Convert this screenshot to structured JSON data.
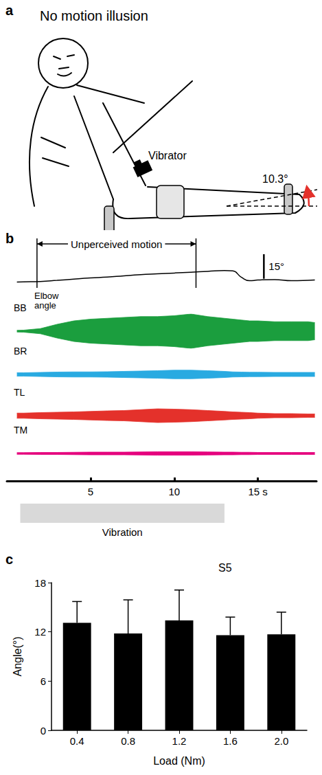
{
  "panel_a": {
    "letter": "a",
    "title": "No motion illusion",
    "vibrator_label": "Vibrator",
    "angle_label": "10.3°"
  },
  "chart_data": [
    {
      "type": "line",
      "letter": "b",
      "x": [
        0.6,
        1,
        2,
        3,
        4,
        5,
        6,
        7,
        8,
        9,
        10,
        11,
        12,
        13,
        13.5,
        14,
        14.5,
        15,
        16,
        17,
        18,
        18.4
      ],
      "xlim": [
        0,
        18.5
      ],
      "xticks": [
        5,
        10,
        {
          "value": 15,
          "label": "15 s"
        }
      ],
      "tick_labels": "x",
      "elbow": {
        "label": "Elbow angle",
        "color": "#000000",
        "values": [
          0,
          0.1,
          0.3,
          1,
          1.8,
          2.5,
          3,
          3.8,
          4.5,
          5,
          5.5,
          6,
          6.5,
          7,
          6.8,
          3,
          0.8,
          1.2,
          1.5,
          0.8,
          1,
          1.2
        ],
        "ylim": [
          -4,
          17
        ],
        "scale_bar": {
          "value": 15,
          "label": "15°"
        }
      },
      "emg": {
        "ylim": [
          -1,
          1
        ],
        "series": [
          {
            "name": "BB",
            "color": "#1b9e3e",
            "values": [
              0.05,
              0.06,
              0.15,
              0.4,
              0.6,
              0.7,
              0.75,
              0.8,
              0.85,
              0.85,
              0.9,
              1.0,
              0.85,
              0.75,
              0.7,
              0.65,
              0.6,
              0.6,
              0.55,
              0.55,
              0.55,
              0.5
            ]
          },
          {
            "name": "BR",
            "color": "#29aae1",
            "values": [
              0.1,
              0.1,
              0.12,
              0.14,
              0.15,
              0.15,
              0.16,
              0.18,
              0.2,
              0.22,
              0.25,
              0.25,
              0.22,
              0.18,
              0.15,
              0.14,
              0.13,
              0.13,
              0.12,
              0.12,
              0.12,
              0.12
            ]
          },
          {
            "name": "TL",
            "color": "#e4312b",
            "values": [
              0.15,
              0.15,
              0.18,
              0.2,
              0.22,
              0.25,
              0.28,
              0.3,
              0.35,
              0.4,
              0.38,
              0.35,
              0.3,
              0.25,
              0.22,
              0.2,
              0.18,
              0.15,
              0.12,
              0.12,
              0.1,
              0.1
            ]
          },
          {
            "name": "TM",
            "color": "#e5007d",
            "values": [
              0.05,
              0.05,
              0.06,
              0.06,
              0.07,
              0.08,
              0.08,
              0.08,
              0.09,
              0.1,
              0.1,
              0.1,
              0.09,
              0.08,
              0.08,
              0.07,
              0.07,
              0.06,
              0.06,
              0.06,
              0.06,
              0.06
            ]
          }
        ]
      },
      "unperceived_motion": {
        "label": "Unperceived motion",
        "start": 1.8,
        "end": 11.3
      },
      "vibration": {
        "label": "Vibration",
        "start": 0.8,
        "end": 13
      }
    },
    {
      "type": "bar",
      "letter": "c",
      "title": "S5",
      "categories": [
        "0.4",
        "0.8",
        "1.2",
        "1.6",
        "2.0"
      ],
      "values": [
        13.1,
        11.8,
        13.4,
        11.6,
        11.7
      ],
      "errors": [
        2.6,
        4.1,
        3.7,
        2.2,
        2.7
      ],
      "color": "#000000",
      "x_label": "Load (Nm)",
      "y_label": "Angle(°)",
      "ylim": [
        0,
        18
      ],
      "yticks": [
        0,
        6,
        12,
        18
      ],
      "grid": false
    }
  ]
}
